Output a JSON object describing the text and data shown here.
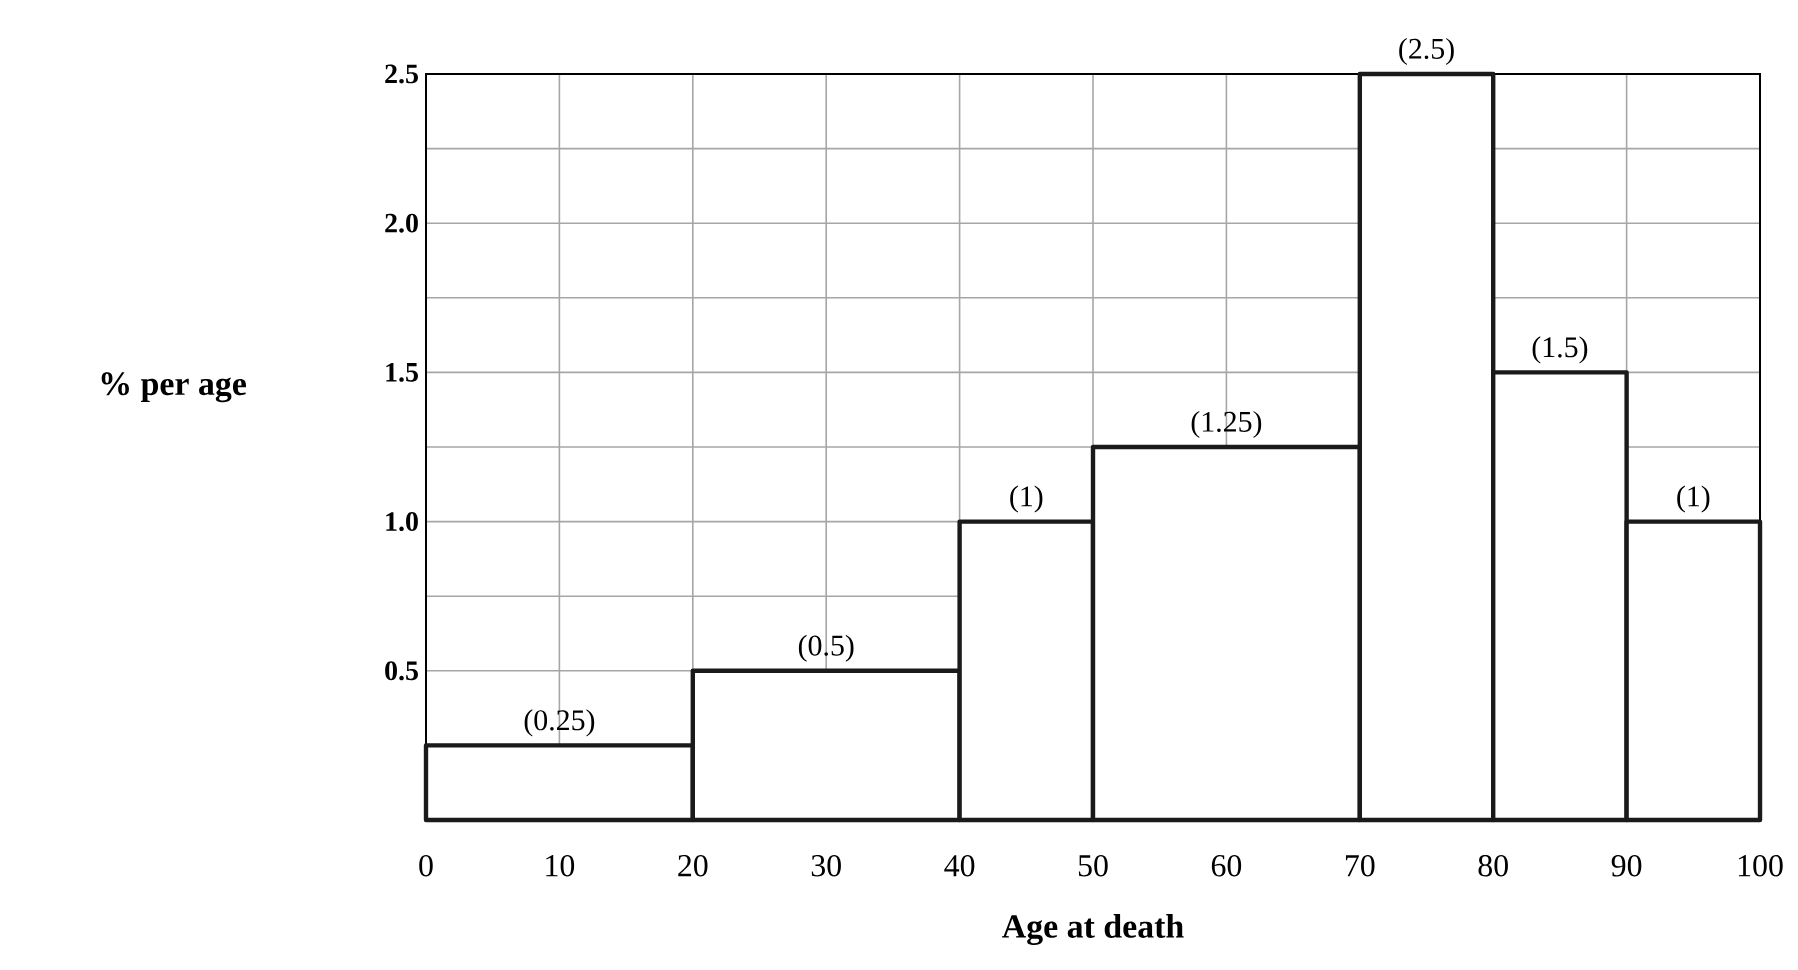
{
  "chart_data": {
    "type": "histogram",
    "xlabel": "Age at death",
    "ylabel": "% per age",
    "bins": [
      0,
      20,
      40,
      50,
      70,
      80,
      90,
      100
    ],
    "values": [
      0.25,
      0.5,
      1,
      1.25,
      2.5,
      1.5,
      1
    ],
    "value_labels": [
      "(0.25)",
      "(0.5)",
      "(1)",
      "(1.25)",
      "(2.5)",
      "(1.5)",
      "(1)"
    ],
    "color": "#1a1a1a",
    "xlim": [
      0,
      100
    ],
    "ylim": [
      0,
      2.5
    ],
    "xticks": [
      0,
      10,
      20,
      30,
      40,
      50,
      60,
      70,
      80,
      90,
      100
    ],
    "yticks": [
      {
        "value": 0.25,
        "label": null
      },
      0.5,
      {
        "value": 0.75,
        "label": null
      },
      {
        "value": 1.0,
        "label": "1.0"
      },
      {
        "value": 1.25,
        "label": null
      },
      {
        "value": 1.5,
        "label": "1.5"
      },
      {
        "value": 1.75,
        "label": null
      },
      {
        "value": 2.0,
        "label": "2.0"
      },
      {
        "value": 2.25,
        "label": null
      },
      {
        "value": 2.5,
        "label": "2.5"
      }
    ],
    "grid": true
  }
}
